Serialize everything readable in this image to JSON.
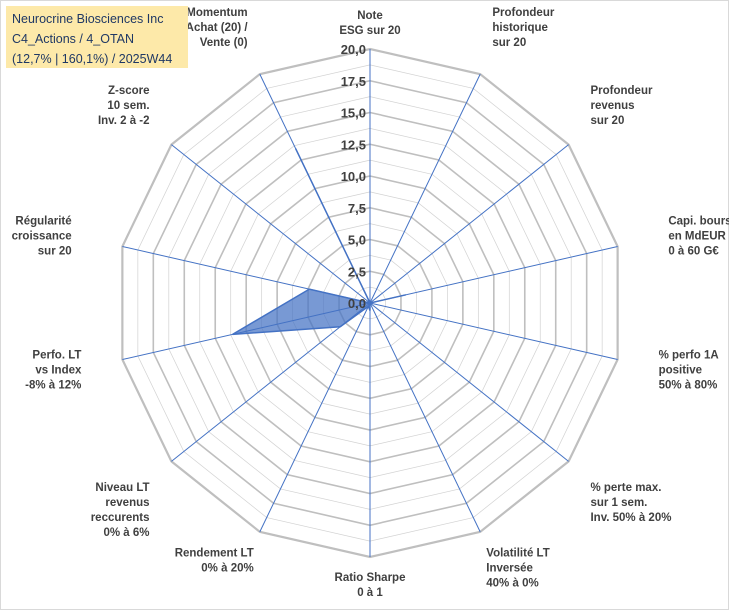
{
  "header": {
    "line1": "Neurocrine Biosciences Inc",
    "line2": "C4_Actions / 4_OTAN",
    "line3": "(12,7% | 160,1%) / 2025W44"
  },
  "chart_data": {
    "type": "radar",
    "rmax": 20,
    "ticks": [
      "0,0",
      "2,5",
      "5,0",
      "7,5",
      "10,0",
      "12,5",
      "15,0",
      "17,5",
      "20,0"
    ],
    "axes": [
      {
        "label": [
          "Note",
          "ESG sur 20"
        ]
      },
      {
        "label": [
          "Profondeur",
          "historique",
          "sur 20"
        ]
      },
      {
        "label": [
          "Profondeur",
          "revenus",
          "sur 20"
        ]
      },
      {
        "label": [
          "Capi. bours.",
          "en MdEUR",
          "0 à 60 G€"
        ]
      },
      {
        "label": [
          "% perfo 1A",
          "positive",
          "50% à 80%"
        ]
      },
      {
        "label": [
          "% perte max.",
          "sur 1 sem.",
          "Inv. 50% à 20%"
        ]
      },
      {
        "label": [
          "Volatilité LT",
          "Inversée",
          "40% à 0%"
        ]
      },
      {
        "label": [
          "Ratio Sharpe",
          "0 à 1"
        ]
      },
      {
        "label": [
          "Rendement LT",
          "0% à 20%"
        ]
      },
      {
        "label": [
          "Niveau LT",
          "revenus",
          "reccurents",
          "0% à 6%"
        ]
      },
      {
        "label": [
          "Perfo. LT",
          "vs Index",
          "-8% à 12%"
        ]
      },
      {
        "label": [
          "Régularité",
          "croissance",
          "sur 20"
        ]
      },
      {
        "label": [
          "Z-score",
          "10 sem.",
          "Inv. 2 à -2"
        ]
      },
      {
        "label": [
          "Momentum",
          "Achat (20) /",
          "Vente (0)"
        ]
      }
    ],
    "values": [
      0,
      0,
      0,
      2.9,
      0,
      0,
      0,
      0.6,
      0.3,
      3,
      11.1,
      4.9,
      0,
      13.5
    ],
    "grid": true,
    "colors": {
      "fill": "#4472c4",
      "grid": "#bfbfbf",
      "axis": "#4472c4"
    }
  }
}
